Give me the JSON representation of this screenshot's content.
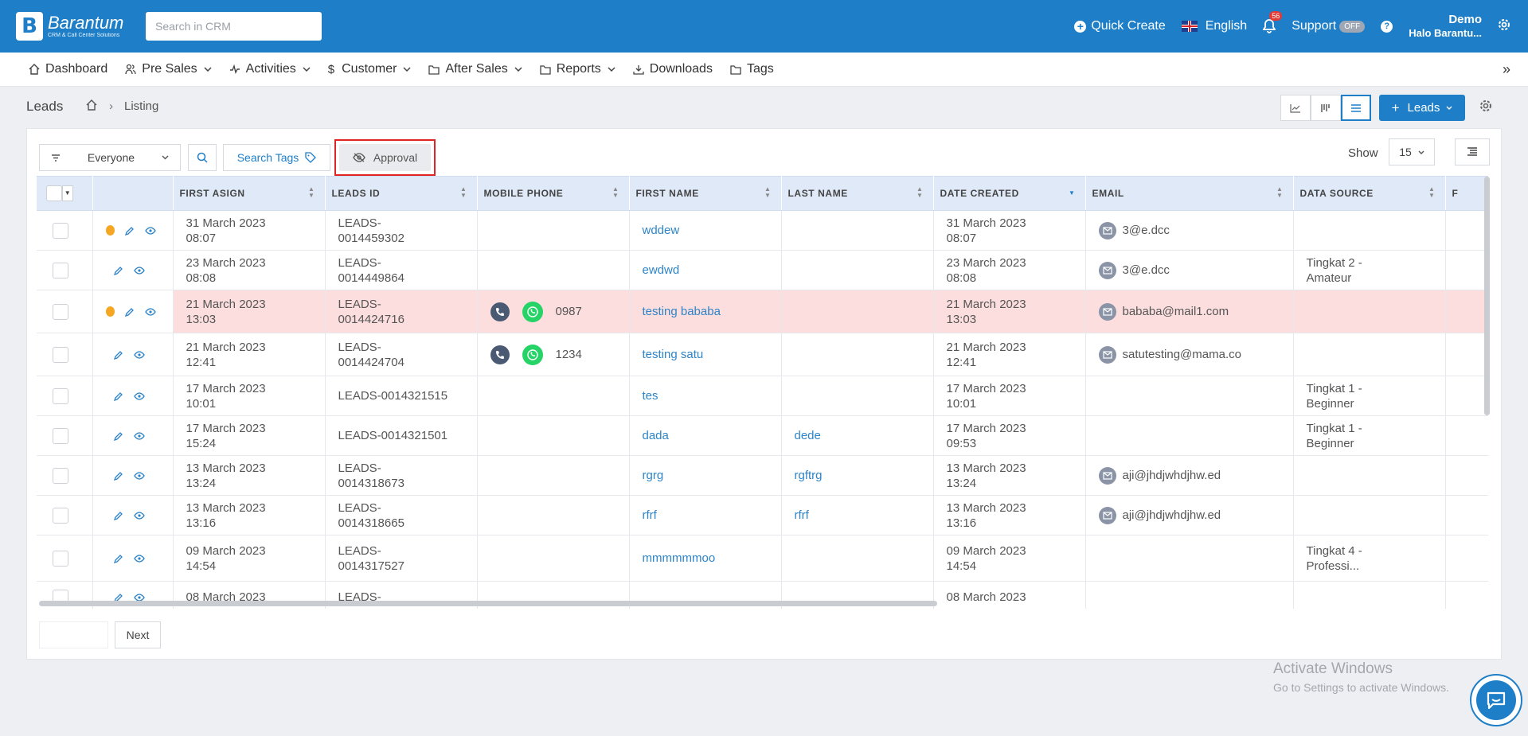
{
  "topbar": {
    "logo_name": "Barantum",
    "logo_sub": "CRM & Call Center Solutions",
    "search_placeholder": "Search in CRM",
    "quick_create": "Quick Create",
    "language": "English",
    "notification_count": "56",
    "support": "Support",
    "support_status": "OFF",
    "user_name": "Demo",
    "user_sub": "Halo Barantu...",
    "brand_color": "#1e7fc8"
  },
  "nav": {
    "items": [
      {
        "label": "Dashboard",
        "icon": "home-icon",
        "dropdown": false
      },
      {
        "label": "Pre Sales",
        "icon": "users-icon",
        "dropdown": true
      },
      {
        "label": "Activities",
        "icon": "activity-icon",
        "dropdown": true
      },
      {
        "label": "Customer",
        "icon": "dollar-icon",
        "dropdown": true
      },
      {
        "label": "After Sales",
        "icon": "folder-icon",
        "dropdown": true
      },
      {
        "label": "Reports",
        "icon": "folder-icon",
        "dropdown": true
      },
      {
        "label": "Downloads",
        "icon": "download-icon",
        "dropdown": false
      },
      {
        "label": "Tags",
        "icon": "folder-icon",
        "dropdown": false
      }
    ],
    "collapse": "»"
  },
  "page": {
    "title": "Leads",
    "breadcrumb_sep": "›",
    "breadcrumb_current": "Listing",
    "leads_button": "Leads"
  },
  "toolbar": {
    "filter_value": "Everyone",
    "search_tags": "Search Tags",
    "approval": "Approval",
    "show_label": "Show",
    "show_value": "15"
  },
  "table": {
    "columns": [
      "FIRST ASIGN",
      "LEADS ID",
      "MOBILE PHONE",
      "FIRST NAME",
      "LAST NAME",
      "DATE CREATED",
      "EMAIL",
      "DATA SOURCE",
      "F"
    ],
    "rows": [
      {
        "warn": true,
        "assign1": "31 March 2023",
        "assign2": "08:07",
        "id1": "LEADS-",
        "id2": "0014459302",
        "phone": "",
        "first": "wddew",
        "last": "",
        "created1": "31 March 2023",
        "created2": "08:07",
        "email": "3@e.dcc",
        "source1": "",
        "source2": "",
        "highlight": false
      },
      {
        "warn": false,
        "assign1": "23 March 2023",
        "assign2": "08:08",
        "id1": "LEADS-",
        "id2": "0014449864",
        "phone": "",
        "first": "ewdwd",
        "last": "",
        "created1": "23 March 2023",
        "created2": "08:08",
        "email": "3@e.dcc",
        "source1": "Tingkat 2 -",
        "source2": "Amateur",
        "highlight": false
      },
      {
        "warn": true,
        "assign1": "21 March 2023",
        "assign2": "13:03",
        "id1": "LEADS-",
        "id2": "0014424716",
        "phone": "0987",
        "first": "testing bababa",
        "last": "",
        "created1": "21 March 2023",
        "created2": "13:03",
        "email": "bababa@mail1.com",
        "source1": "",
        "source2": "",
        "highlight": true
      },
      {
        "warn": false,
        "assign1": "21 March 2023",
        "assign2": "12:41",
        "id1": "LEADS-",
        "id2": "0014424704",
        "phone": "1234",
        "first": "testing satu",
        "last": "",
        "created1": "21 March 2023",
        "created2": "12:41",
        "email": "satutesting@mama.co",
        "source1": "",
        "source2": "",
        "highlight": false
      },
      {
        "warn": false,
        "assign1": "17 March 2023",
        "assign2": "10:01",
        "id1": "LEADS-0014321515",
        "id2": "",
        "phone": "",
        "first": "tes",
        "last": "",
        "created1": "17 March 2023",
        "created2": "10:01",
        "email": "",
        "source1": "Tingkat 1 -",
        "source2": "Beginner",
        "highlight": false
      },
      {
        "warn": false,
        "assign1": "17 March 2023",
        "assign2": "15:24",
        "id1": "LEADS-0014321501",
        "id2": "",
        "phone": "",
        "first": "dada",
        "last": "dede",
        "created1": "17 March 2023",
        "created2": "09:53",
        "email": "",
        "source1": "Tingkat 1 -",
        "source2": "Beginner",
        "highlight": false
      },
      {
        "warn": false,
        "assign1": "13 March 2023",
        "assign2": "13:24",
        "id1": "LEADS-",
        "id2": "0014318673",
        "phone": "",
        "first": "rgrg",
        "last": "rgftrg",
        "created1": "13 March 2023",
        "created2": "13:24",
        "email": "aji@jhdjwhdjhw.ed",
        "source1": "",
        "source2": "",
        "highlight": false
      },
      {
        "warn": false,
        "assign1": "13 March 2023",
        "assign2": "13:16",
        "id1": "LEADS-",
        "id2": "0014318665",
        "phone": "",
        "first": "rfrf",
        "last": "rfrf",
        "created1": "13 March 2023",
        "created2": "13:16",
        "email": "aji@jhdjwhdjhw.ed",
        "source1": "",
        "source2": "",
        "highlight": false
      },
      {
        "warn": false,
        "assign1": "09 March 2023",
        "assign2": "14:54",
        "id1": "LEADS-",
        "id2": "0014317527",
        "phone": "",
        "first": "mmmmmmoo",
        "last": "",
        "created1": "09 March 2023",
        "created2": "14:54",
        "email": "",
        "source1": "Tingkat 4 -",
        "source2": "Professi...",
        "highlight": false
      },
      {
        "warn": false,
        "assign1": "08 March 2023",
        "assign2": "",
        "id1": "LEADS-",
        "id2": "",
        "phone": "",
        "first": "",
        "last": "",
        "created1": "08 March 2023",
        "created2": "",
        "email": "",
        "source1": "",
        "source2": "",
        "highlight": false
      }
    ]
  },
  "pager": {
    "next": "Next"
  },
  "watermark": {
    "line1": "Activate Windows",
    "line2": "Go to Settings to activate Windows."
  }
}
